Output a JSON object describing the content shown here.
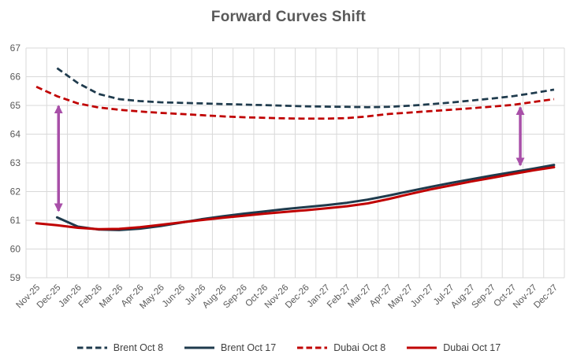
{
  "title": "Forward Curves Shift",
  "colors": {
    "brent": "#1F3B4D",
    "dubai": "#C00000",
    "arrow": "#A84FA8",
    "grid": "#D9D9D9",
    "axis_text": "#595959",
    "legend_text": "#3F3F3F",
    "title_text": "#595959"
  },
  "chart_data": {
    "type": "line",
    "title": "Forward Curves Shift",
    "xlabel": "",
    "ylabel": "",
    "ylim": [
      59,
      67
    ],
    "y_ticks": [
      59,
      60,
      61,
      62,
      63,
      64,
      65,
      66,
      67
    ],
    "grid": true,
    "legend_position": "bottom",
    "categories": [
      "Nov-25",
      "Dec-25",
      "Jan-26",
      "Feb-26",
      "Mar-26",
      "Apr-26",
      "May-26",
      "Jun-26",
      "Jul-26",
      "Aug-26",
      "Sep-26",
      "Oct-26",
      "Nov-26",
      "Dec-26",
      "Jan-27",
      "Feb-27",
      "Mar-27",
      "Apr-27",
      "May-27",
      "Jun-27",
      "Jul-27",
      "Aug-27",
      "Sep-27",
      "Oct-27",
      "Nov-27",
      "Dec-27"
    ],
    "series": [
      {
        "name": "Brent Oct 8",
        "color": "#1F3B4D",
        "style": "dashed",
        "values": [
          null,
          66.3,
          65.78,
          65.4,
          65.22,
          65.15,
          65.11,
          65.09,
          65.07,
          65.05,
          65.03,
          65.01,
          64.99,
          64.97,
          64.96,
          64.95,
          64.94,
          64.95,
          64.99,
          65.04,
          65.1,
          65.17,
          65.24,
          65.32,
          65.43,
          65.55
        ]
      },
      {
        "name": "Brent Oct 17",
        "color": "#1F3B4D",
        "style": "solid",
        "values": [
          null,
          61.1,
          60.78,
          60.68,
          60.66,
          60.71,
          60.8,
          60.92,
          61.04,
          61.14,
          61.23,
          61.31,
          61.39,
          61.46,
          61.53,
          61.61,
          61.72,
          61.86,
          62.01,
          62.16,
          62.3,
          62.43,
          62.56,
          62.68,
          62.8,
          62.93
        ]
      },
      {
        "name": "Dubai Oct 8",
        "color": "#C00000",
        "style": "dashed",
        "values": [
          65.65,
          65.32,
          65.07,
          64.93,
          64.85,
          64.79,
          64.74,
          64.7,
          64.66,
          64.62,
          64.59,
          64.57,
          64.55,
          64.54,
          64.54,
          64.56,
          64.62,
          64.7,
          64.75,
          64.8,
          64.85,
          64.9,
          64.96,
          65.02,
          65.12,
          65.22
        ]
      },
      {
        "name": "Dubai Oct 17",
        "color": "#C00000",
        "style": "solid",
        "values": [
          60.9,
          60.83,
          60.74,
          60.69,
          60.7,
          60.76,
          60.84,
          60.93,
          61.01,
          61.09,
          61.16,
          61.23,
          61.29,
          61.35,
          61.42,
          61.49,
          61.59,
          61.74,
          61.91,
          62.07,
          62.21,
          62.35,
          62.48,
          62.61,
          62.74,
          62.85
        ]
      }
    ],
    "annotations": [
      {
        "type": "double-arrow",
        "color": "#A84FA8",
        "x_index": 1.57,
        "y_from": 61.33,
        "y_to": 64.98
      },
      {
        "type": "double-arrow",
        "color": "#A84FA8",
        "x_index": 23.87,
        "y_from": 62.92,
        "y_to": 64.93
      }
    ]
  }
}
